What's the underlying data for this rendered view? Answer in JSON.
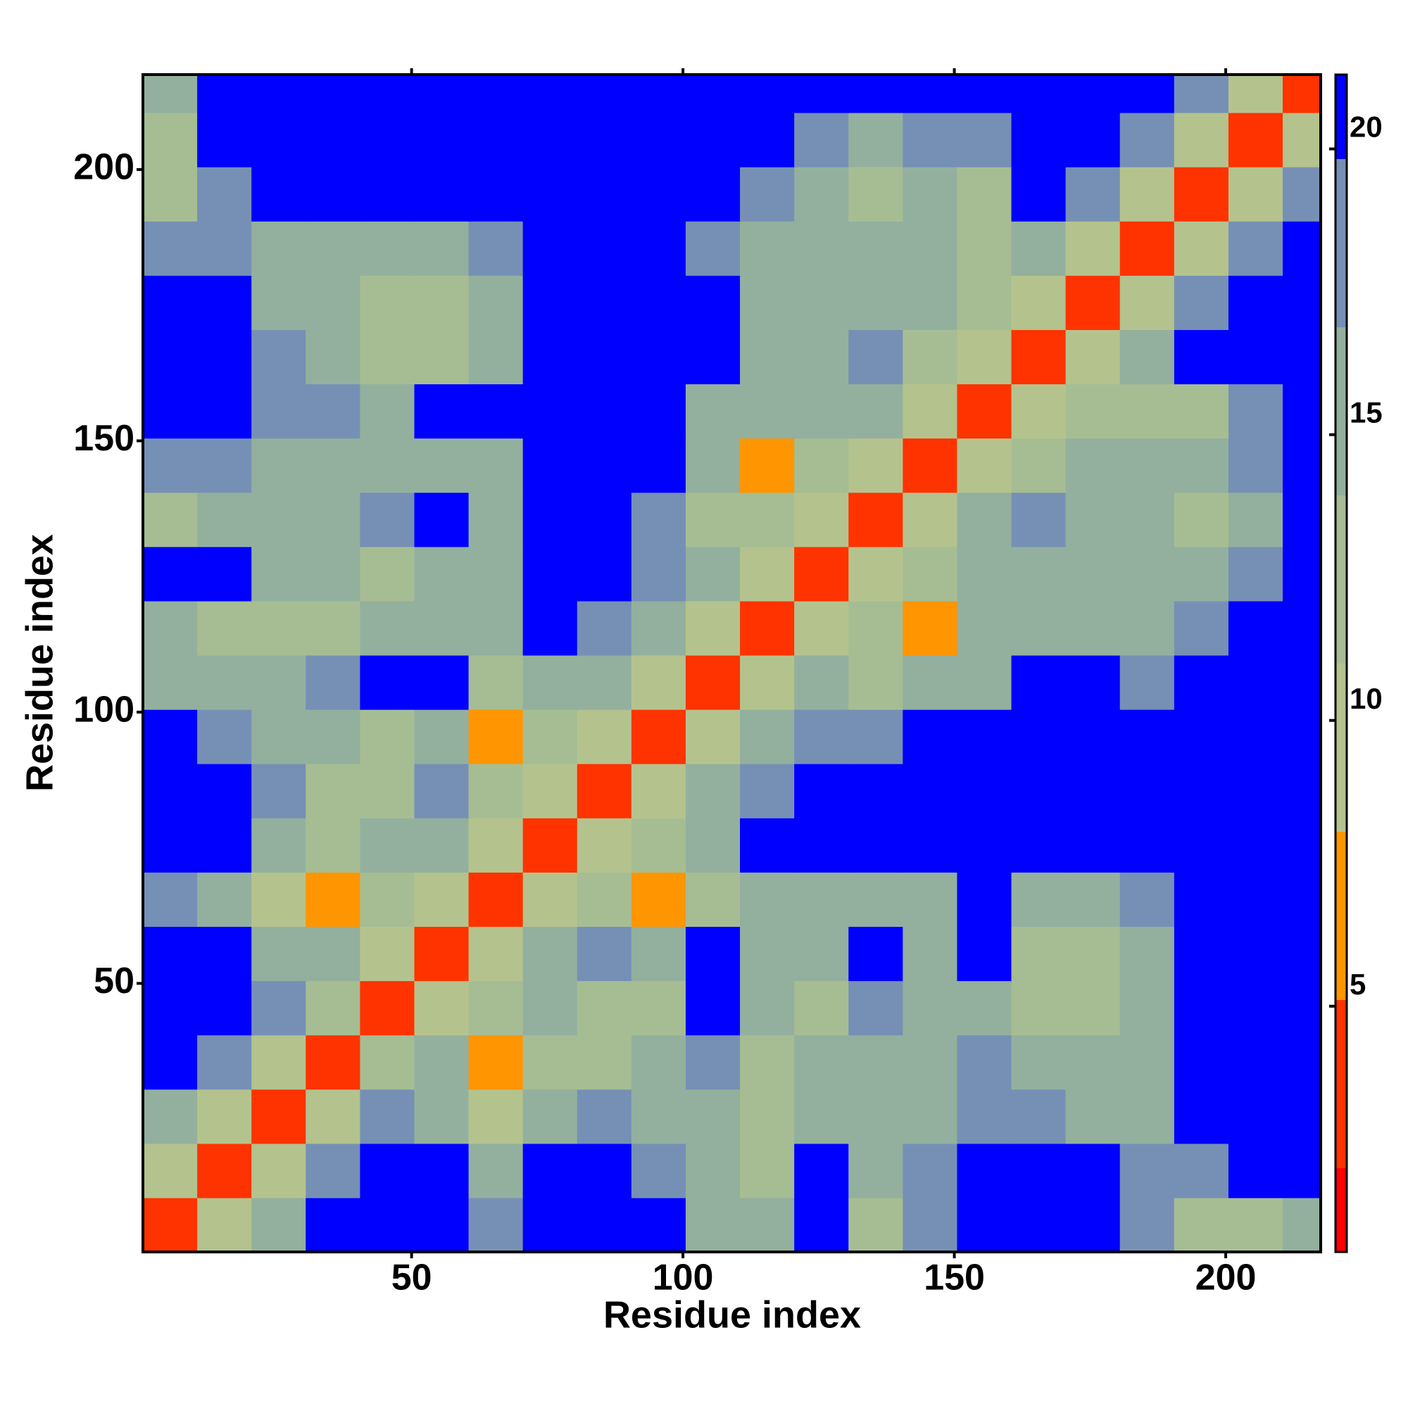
{
  "chart_data": {
    "type": "heatmap",
    "xlabel": "Residue index",
    "ylabel": "Residue index",
    "xlim": [
      0.5,
      217.5
    ],
    "ylim": [
      0.5,
      217.5
    ],
    "xticks": [
      50,
      100,
      150,
      200
    ],
    "yticks": [
      50,
      100,
      150,
      200
    ],
    "x_bins": [
      0.5,
      10.5,
      20.5,
      30.5,
      40.5,
      50.5,
      60.5,
      70.5,
      80.5,
      90.5,
      100.5,
      110.5,
      120.5,
      130.5,
      140.5,
      150.5,
      160.5,
      170.5,
      180.5,
      190.5,
      200.5,
      210.5,
      217.5
    ],
    "y_bins": [
      0.5,
      10.5,
      20.5,
      30.5,
      40.5,
      50.5,
      60.5,
      70.5,
      80.5,
      90.5,
      100.5,
      110.5,
      120.5,
      130.5,
      140.5,
      150.5,
      160.5,
      170.5,
      180.5,
      190.5,
      200.5,
      210.5,
      217.5
    ],
    "z": [
      [
        4,
        9,
        15,
        21,
        21,
        21,
        19,
        21,
        21,
        21,
        16,
        14,
        20,
        13,
        19,
        20,
        21,
        21,
        17,
        13,
        11,
        15
      ],
      [
        9,
        4,
        9,
        17,
        21,
        21,
        16,
        21,
        21,
        18,
        14,
        12,
        21,
        15,
        19,
        21,
        21,
        21,
        18,
        17,
        20,
        21
      ],
      [
        15,
        9,
        4,
        10,
        17,
        15,
        10,
        16,
        18,
        15,
        16,
        11,
        15,
        16,
        15,
        18,
        17,
        15,
        15,
        21,
        21,
        21
      ],
      [
        21,
        17,
        10,
        4,
        11,
        14,
        8,
        12,
        13,
        14,
        17,
        12,
        14,
        15,
        15,
        17,
        16,
        15,
        15,
        21,
        21,
        21
      ],
      [
        21,
        21,
        17,
        11,
        4,
        10,
        13,
        14,
        12,
        11,
        20,
        15,
        12,
        18,
        14,
        16,
        12,
        12,
        16,
        21,
        21,
        21
      ],
      [
        21,
        21,
        15,
        14,
        10,
        4,
        10,
        14,
        18,
        14,
        21,
        16,
        15,
        20,
        15,
        21,
        13,
        11,
        15,
        21,
        21,
        21
      ],
      [
        19,
        16,
        10,
        8,
        13,
        10,
        4,
        10,
        13,
        8,
        11,
        14,
        15,
        15,
        16,
        20,
        16,
        15,
        17,
        21,
        21,
        21
      ],
      [
        21,
        21,
        16,
        12,
        14,
        14,
        10,
        4,
        10,
        13,
        15,
        21,
        21,
        21,
        21,
        21,
        21,
        21,
        21,
        21,
        21,
        21
      ],
      [
        21,
        21,
        18,
        13,
        12,
        18,
        13,
        10,
        4,
        10,
        14,
        18,
        20,
        21,
        21,
        21,
        20,
        20,
        21,
        21,
        21,
        21
      ],
      [
        21,
        18,
        15,
        14,
        11,
        14,
        8,
        13,
        10,
        4,
        10,
        15,
        18,
        19,
        20,
        21,
        20,
        20,
        21,
        21,
        21,
        21
      ],
      [
        16,
        14,
        16,
        17,
        20,
        21,
        11,
        15,
        14,
        10,
        4,
        10,
        14,
        13,
        16,
        16,
        21,
        20,
        19,
        20,
        21,
        21
      ],
      [
        14,
        12,
        11,
        12,
        15,
        16,
        14,
        21,
        18,
        15,
        10,
        4,
        10,
        12,
        8,
        15,
        16,
        15,
        15,
        17,
        21,
        21
      ],
      [
        20,
        21,
        15,
        14,
        12,
        15,
        15,
        21,
        20,
        18,
        14,
        10,
        4,
        10,
        11,
        15,
        16,
        16,
        16,
        15,
        17,
        21
      ],
      [
        13,
        15,
        16,
        15,
        18,
        20,
        15,
        21,
        21,
        19,
        13,
        12,
        10,
        4,
        10,
        14,
        18,
        16,
        14,
        12,
        16,
        21
      ],
      [
        19,
        19,
        15,
        15,
        14,
        15,
        16,
        21,
        21,
        20,
        16,
        8,
        11,
        10,
        4,
        10,
        11,
        14,
        14,
        14,
        17,
        21
      ],
      [
        20,
        21,
        18,
        17,
        16,
        21,
        20,
        21,
        21,
        21,
        16,
        15,
        15,
        14,
        10,
        4,
        10,
        13,
        12,
        13,
        17,
        21
      ],
      [
        21,
        21,
        17,
        16,
        12,
        13,
        16,
        21,
        20,
        20,
        21,
        16,
        16,
        18,
        11,
        10,
        4,
        10,
        16,
        21,
        21,
        21
      ],
      [
        21,
        21,
        15,
        15,
        12,
        11,
        15,
        21,
        20,
        20,
        20,
        15,
        16,
        16,
        14,
        13,
        10,
        4,
        10,
        18,
        21,
        21
      ],
      [
        17,
        18,
        15,
        15,
        16,
        15,
        17,
        21,
        21,
        21,
        19,
        15,
        16,
        14,
        14,
        12,
        16,
        10,
        4,
        10,
        17,
        21
      ],
      [
        13,
        17,
        21,
        21,
        21,
        21,
        21,
        21,
        21,
        21,
        20,
        17,
        15,
        12,
        14,
        13,
        21,
        18,
        10,
        4,
        10,
        17
      ],
      [
        11,
        20,
        21,
        21,
        21,
        21,
        21,
        21,
        21,
        21,
        21,
        21,
        17,
        16,
        17,
        17,
        21,
        21,
        17,
        10,
        4,
        10
      ],
      [
        15,
        21,
        21,
        21,
        21,
        21,
        21,
        21,
        21,
        21,
        21,
        21,
        21,
        21,
        21,
        21,
        21,
        21,
        21,
        17,
        10,
        4
      ]
    ],
    "zlim": [
      0.7,
      21.3
    ],
    "zticks": [
      5,
      10,
      15,
      20
    ],
    "colorscale": [
      "#ff0000",
      "#ff3300",
      "#ff9500",
      "#b4c38d",
      "#a6bd93",
      "#93b09e",
      "#7690b5",
      "#0000ff"
    ]
  }
}
